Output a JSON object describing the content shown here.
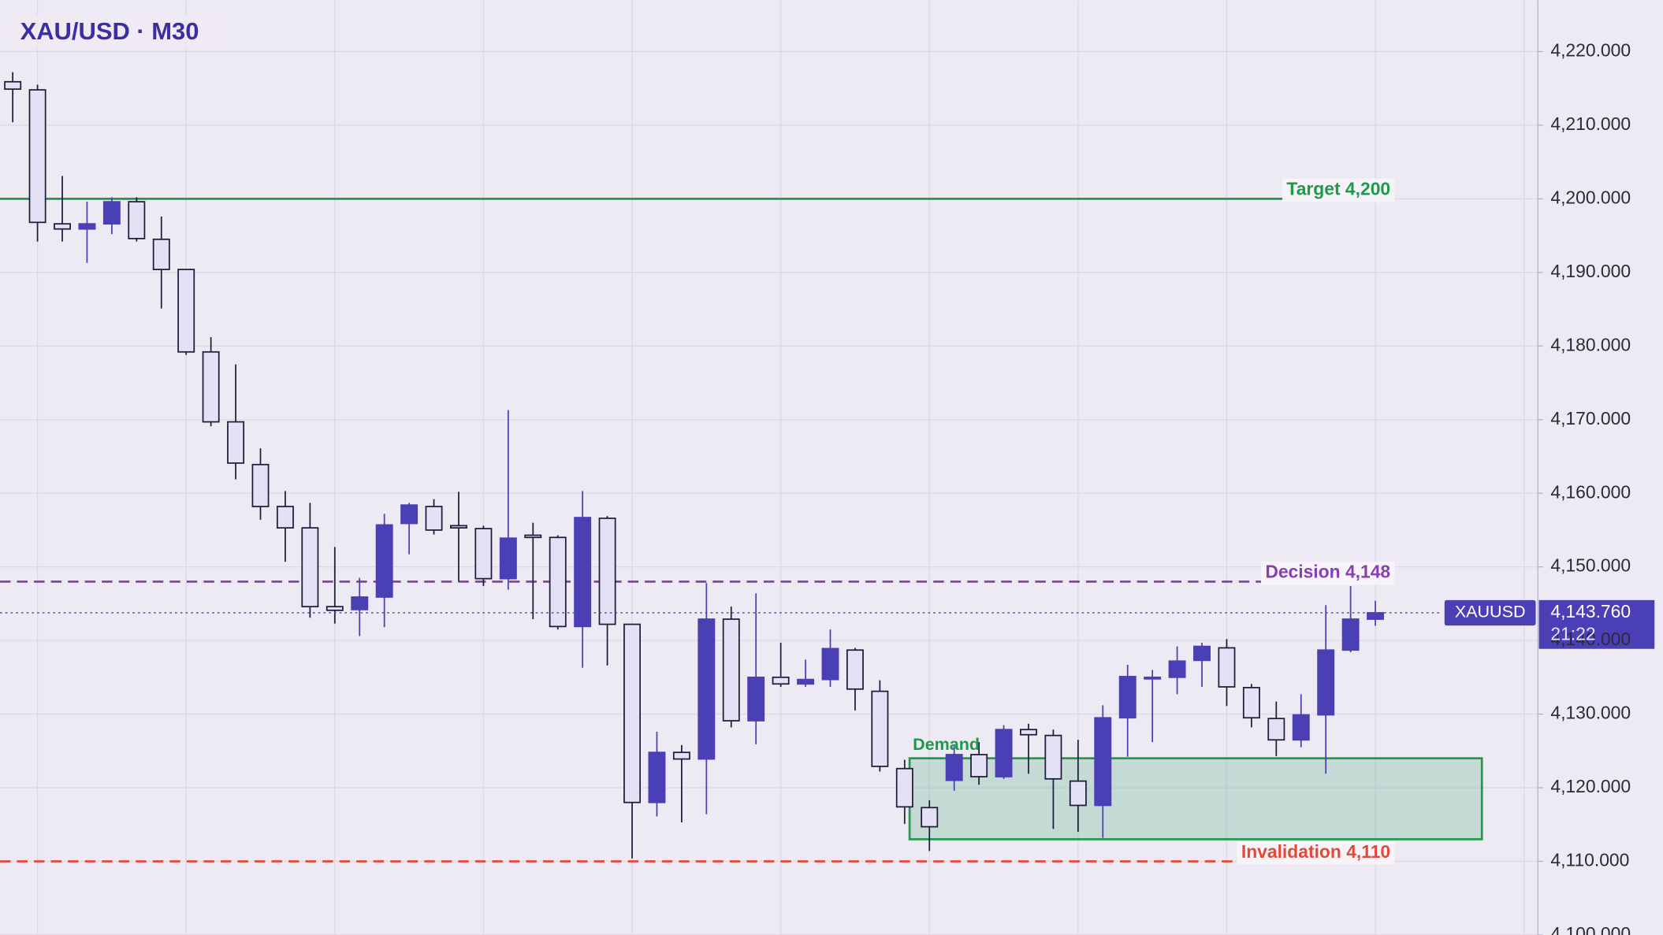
{
  "chart_data": {
    "type": "candlestick",
    "title": "XAU/USD · M30",
    "symbol": "XAUUSD",
    "countdown": "21:22",
    "last_price": {
      "value": 4143.76,
      "label": "4,143.760"
    },
    "up_color": "#4b3fb5",
    "down_color": "#e4e1f4",
    "ylim": [
      4100,
      4227
    ],
    "yticks": [
      {
        "value": 4100,
        "label": "4,100.000"
      },
      {
        "value": 4110,
        "label": "4,110.000"
      },
      {
        "value": 4120,
        "label": "4,120.000"
      },
      {
        "value": 4130,
        "label": "4,130.000"
      },
      {
        "value": 4140,
        "label": "4,140.000"
      },
      {
        "value": 4150,
        "label": "4,150.000"
      },
      {
        "value": 4160,
        "label": "4,160.000"
      },
      {
        "value": 4170,
        "label": "4,170.000"
      },
      {
        "value": 4180,
        "label": "4,180.000"
      },
      {
        "value": 4190,
        "label": "4,190.000"
      },
      {
        "value": 4200,
        "label": "4,200.000"
      },
      {
        "value": 4210,
        "label": "4,210.000"
      },
      {
        "value": 4220,
        "label": "4,220.000"
      }
    ],
    "grid": true,
    "open": [
      4215.9,
      4214.8,
      4196.6,
      4195.9,
      4196.6,
      4199.6,
      4194.5,
      4190.4,
      4179.2,
      4169.7,
      4163.9,
      4158.2,
      4155.3,
      4144.6,
      4144.2,
      4145.9,
      4155.9,
      4158.2,
      4155.6,
      4155.2,
      4148.4,
      4154.3,
      4154.0,
      4141.9,
      4156.6,
      4142.2,
      4118.0,
      4124.8,
      4123.9,
      4142.9,
      4129.1,
      4135.0,
      4134.1,
      4134.7,
      4138.7,
      4133.1,
      4122.6,
      4117.3,
      4121.0,
      4124.5,
      4121.5,
      4127.9,
      4127.1,
      4120.9,
      4117.6,
      4129.5,
      4134.9,
      4135.0,
      4137.3,
      4139.0,
      4133.6,
      4129.4,
      4126.5,
      4129.9,
      4138.7,
      4142.9
    ],
    "high": [
      4217.2,
      4215.5,
      4203.1,
      4199.6,
      4200.2,
      4200.2,
      4197.6,
      4190.4,
      4181.2,
      4177.5,
      4166.1,
      4160.3,
      4158.7,
      4152.7,
      4148.5,
      4157.2,
      4158.7,
      4159.2,
      4160.2,
      4155.6,
      4171.3,
      4156.0,
      4154.3,
      4160.3,
      4156.9,
      4142.2,
      4127.6,
      4125.8,
      4147.8,
      4144.6,
      4146.4,
      4139.7,
      4137.4,
      4141.5,
      4139.0,
      4134.6,
      4123.8,
      4118.3,
      4125.9,
      4126.2,
      4128.5,
      4128.7,
      4127.9,
      4126.5,
      4131.2,
      4136.7,
      4136.0,
      4139.2,
      4139.7,
      4140.2,
      4134.1,
      4131.7,
      4132.7,
      4144.8,
      4147.4,
      4145.4
    ],
    "low": [
      4210.4,
      4194.2,
      4194.2,
      4191.3,
      4195.2,
      4194.2,
      4185.1,
      4178.8,
      4169.1,
      4161.9,
      4156.4,
      4150.7,
      4143.1,
      4142.3,
      4140.6,
      4141.8,
      4151.7,
      4154.4,
      4148.0,
      4147.4,
      4146.9,
      4142.9,
      4141.5,
      4136.3,
      4136.6,
      4110.4,
      4116.1,
      4115.3,
      4116.4,
      4128.2,
      4125.9,
      4133.7,
      4133.7,
      4133.7,
      4130.5,
      4122.2,
      4115.1,
      4111.4,
      4119.6,
      4120.4,
      4121.2,
      4121.9,
      4114.4,
      4114.0,
      4113.2,
      4124.2,
      4126.2,
      4132.7,
      4133.7,
      4131.1,
      4128.2,
      4124.3,
      4125.5,
      4121.9,
      4138.4,
      4142.0
    ],
    "close": [
      4214.9,
      4196.8,
      4195.9,
      4196.6,
      4199.6,
      4194.6,
      4190.4,
      4179.2,
      4169.7,
      4164.1,
      4158.2,
      4155.3,
      4144.6,
      4144.1,
      4145.9,
      4155.7,
      4158.4,
      4155.0,
      4155.3,
      4148.4,
      4153.9,
      4154.0,
      4141.9,
      4156.7,
      4142.2,
      4118.0,
      4124.8,
      4123.9,
      4142.9,
      4129.1,
      4135.0,
      4134.1,
      4134.7,
      4138.9,
      4133.4,
      4122.9,
      4117.4,
      4114.7,
      4124.5,
      4121.5,
      4127.9,
      4127.2,
      4121.2,
      4117.6,
      4129.5,
      4135.1,
      4135.0,
      4137.2,
      4139.2,
      4133.7,
      4129.5,
      4126.5,
      4129.9,
      4138.7,
      4142.9,
      4143.76
    ],
    "levels": [
      {
        "label": "Target 4,200",
        "value": 4200,
        "color": "#1f9a4a",
        "style": "solid"
      },
      {
        "label": "Decision 4,148",
        "value": 4148,
        "color": "#8a3fb0",
        "style": "dashed"
      },
      {
        "label": "Invalidation 4,110",
        "value": 4110,
        "color": "#e04a3a",
        "style": "dashed"
      }
    ],
    "zone": {
      "label": "Demand",
      "y_range": [
        4113,
        4124
      ],
      "x_range": [
        36.2,
        59.3
      ],
      "color": "#1f9a4a"
    }
  }
}
